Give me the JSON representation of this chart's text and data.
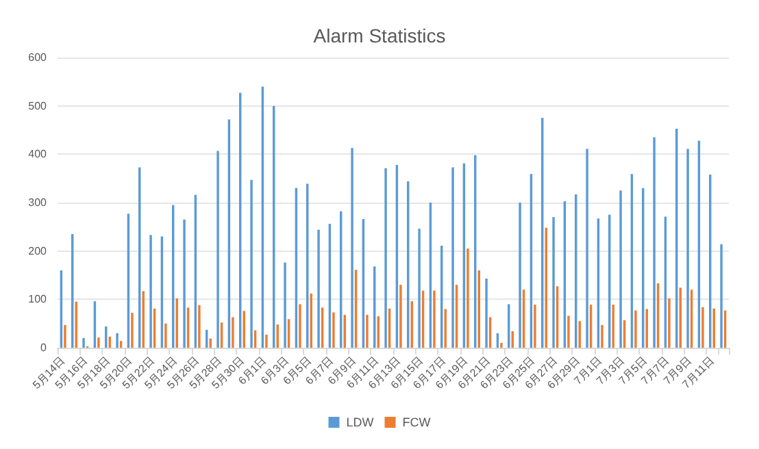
{
  "chart_data": {
    "type": "bar",
    "title": "Alarm Statistics",
    "categories": [
      "5月14日",
      null,
      "5月16日",
      null,
      "5月18日",
      null,
      "5月20日",
      null,
      "5月22日",
      null,
      "5月24日",
      null,
      "5月26日",
      null,
      "5月28日",
      null,
      "5月30日",
      null,
      "6月1日",
      null,
      "6月3日",
      null,
      "6月5日",
      null,
      "6月7日",
      null,
      "6月9日",
      null,
      "6月11日",
      null,
      "6月13日",
      null,
      "6月15日",
      null,
      "6月17日",
      null,
      "6月19日",
      null,
      "6月21日",
      null,
      "6月23日",
      null,
      "6月25日",
      null,
      "6月27日",
      null,
      "6月29日",
      null,
      "7月1日",
      null,
      "7月3日",
      null,
      "7月5日",
      null,
      "7月7日",
      null,
      "7月9日",
      null,
      "7月11日",
      null
    ],
    "series": [
      {
        "name": "LDW",
        "color": "#5b9bd5",
        "values": [
          160,
          235,
          20,
          96,
          44,
          30,
          277,
          373,
          233,
          230,
          295,
          265,
          316,
          37,
          407,
          472,
          527,
          347,
          540,
          500,
          176,
          330,
          339,
          244,
          256,
          282,
          413,
          266,
          168,
          371,
          378,
          344,
          246,
          300,
          211,
          373,
          381,
          398,
          143,
          30,
          90,
          300,
          359,
          475,
          270,
          303,
          317,
          411,
          267,
          275,
          325,
          359,
          330,
          435,
          271,
          453,
          411,
          428,
          358,
          214
        ]
      },
      {
        "name": "FCW",
        "color": "#ed7d31",
        "values": [
          47,
          95,
          3,
          21,
          23,
          14,
          72,
          117,
          81,
          50,
          102,
          83,
          88,
          19,
          52,
          63,
          76,
          36,
          27,
          48,
          59,
          90,
          112,
          83,
          73,
          68,
          161,
          68,
          65,
          81,
          130,
          96,
          118,
          118,
          80,
          130,
          205,
          160,
          63,
          10,
          34,
          120,
          89,
          248,
          127,
          66,
          55,
          89,
          47,
          89,
          57,
          77,
          80,
          133,
          102,
          124,
          120,
          84,
          81,
          77
        ]
      }
    ],
    "ylim": [
      0,
      600
    ],
    "yticks": [
      0,
      100,
      200,
      300,
      400,
      500,
      600
    ],
    "grid": "y",
    "legend": "bottom"
  }
}
